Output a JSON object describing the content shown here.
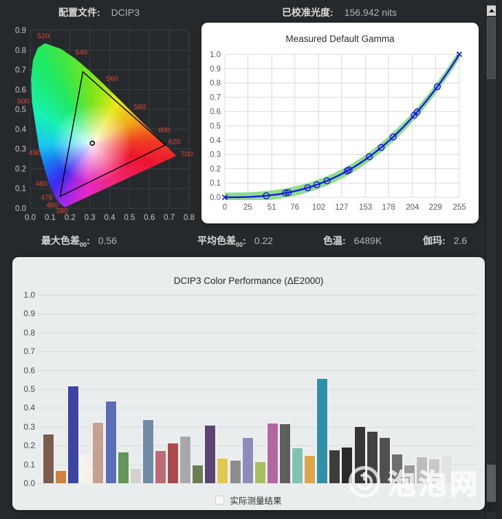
{
  "header": {
    "profile_label": "配置文件:",
    "profile_value": "DCIP3",
    "luminance_label": "已校准光度:",
    "luminance_value": "156.942 nits"
  },
  "stats": [
    {
      "label": "最大色差",
      "sub": "00",
      "value": "0.56"
    },
    {
      "label": "平均色差",
      "sub": "00",
      "value": "0.22"
    },
    {
      "label": "色温",
      "sub": "",
      "value": "6489K"
    },
    {
      "label": "伽玛",
      "sub": "",
      "value": "2.6"
    }
  ],
  "ui": {
    "colon": ":"
  },
  "colors": {
    "page_bg": "#26292c",
    "panel_bg": "#eaedee",
    "grid_dark": "#3b3f42",
    "grid_light": "#d9d9d9",
    "axis_text_dark_bg": "#c6c6c6",
    "axis_text_light_bg": "#595959",
    "wavelength_red": "#e2473c",
    "gamma_curve": "#1a1ae0",
    "gamma_band": "#8fdc8f",
    "triangle": "#000000"
  },
  "watermark": {
    "text": "泡泡网",
    "icon": "power-icon"
  },
  "chart_data": [
    {
      "type": "scatter",
      "title": "CIE 1931 xy chromaticity with DCIP3 gamut triangle",
      "x_ticks": [
        "0.0",
        "0.1",
        "0.2",
        "0.3",
        "0.4",
        "0.5",
        "0.6",
        "0.7",
        "0.8"
      ],
      "y_ticks": [
        "0.9",
        "0.8",
        "0.7",
        "0.6",
        "0.5",
        "0.4",
        "0.3",
        "0.2",
        "0.1",
        "0.0"
      ],
      "xlim": [
        0,
        0.8
      ],
      "ylim": [
        0,
        0.9
      ],
      "gamut_triangle": {
        "red": [
          0.68,
          0.32
        ],
        "green": [
          0.265,
          0.69
        ],
        "blue": [
          0.15,
          0.06
        ]
      },
      "white_point": [
        0.3127,
        0.329
      ],
      "wavelength_labels": [
        {
          "text": "520",
          "x": 0.066,
          "y": 0.872
        },
        {
          "text": "540",
          "x": 0.257,
          "y": 0.788
        },
        {
          "text": "560",
          "x": 0.413,
          "y": 0.656
        },
        {
          "text": "580",
          "x": 0.552,
          "y": 0.514
        },
        {
          "text": "600",
          "x": 0.674,
          "y": 0.396
        },
        {
          "text": "620",
          "x": 0.726,
          "y": 0.337
        },
        {
          "text": "700",
          "x": 0.788,
          "y": 0.274
        },
        {
          "text": "500",
          "x": -0.035,
          "y": 0.542
        },
        {
          "text": "490",
          "x": 0.024,
          "y": 0.281
        },
        {
          "text": "480",
          "x": 0.056,
          "y": 0.125
        },
        {
          "text": "470",
          "x": 0.083,
          "y": 0.056
        },
        {
          "text": "460",
          "x": 0.111,
          "y": 0.017
        },
        {
          "text": "380",
          "x": 0.16,
          "y": -0.012
        }
      ]
    },
    {
      "type": "line",
      "title": "Measured Default Gamma",
      "x_ticks": [
        0,
        25,
        51,
        76,
        102,
        127,
        153,
        178,
        204,
        229,
        255
      ],
      "y_ticks": [
        "1.0",
        "0.9",
        "0.8",
        "0.7",
        "0.6",
        "0.5",
        "0.4",
        "0.3",
        "0.2",
        "0.1",
        "0.0"
      ],
      "xlim": [
        0,
        255
      ],
      "ylim": [
        0,
        1
      ],
      "gamma": 2.6,
      "band_halfwidth": 0.033,
      "marker_x": [
        45,
        66,
        69,
        90,
        100,
        111,
        133,
        135,
        157,
        170,
        183,
        206,
        209,
        231
      ],
      "end_marker_x": [
        0,
        255
      ],
      "legend_position": "none",
      "grid": true
    },
    {
      "type": "bar",
      "title": "DCIP3 Color Performance (ΔE2000)",
      "legend": "实际测量结果",
      "ylim": [
        0,
        1
      ],
      "y_ticks": [
        "1.0",
        "0.9",
        "0.8",
        "0.7",
        "0.6",
        "0.5",
        "0.4",
        "0.3",
        "0.2",
        "0.1",
        "0.0"
      ],
      "grid": true,
      "values": [
        0.26,
        0.065,
        0.515,
        0.15,
        0.32,
        0.435,
        0.163,
        0.078,
        0.335,
        0.17,
        0.213,
        0.248,
        0.095,
        0.305,
        0.13,
        0.122,
        0.242,
        0.112,
        0.317,
        0.313,
        0.185,
        0.145,
        0.555,
        0.177,
        0.19,
        0.3,
        0.275,
        0.24,
        0.155,
        0.095,
        0.137,
        0.127,
        0.148
      ],
      "bar_colors": [
        "#7B5C4F",
        "#D08240",
        "#3D45A0",
        "#F4F2EA",
        "#C5A191",
        "#5B6EB5",
        "#649659",
        "#D3D1CE",
        "#718AA6",
        "#BE6A76",
        "#A94A4C",
        "#A9A9A9",
        "#6D7D51",
        "#5D4573",
        "#E2C752",
        "#8D8D8D",
        "#8F8CBC",
        "#A7BF5D",
        "#B566A0",
        "#5E5E5E",
        "#81C2B1",
        "#DBA64E",
        "#3090AC",
        "#3C3C3C",
        "#2A2A2A",
        "#363636",
        "#424242",
        "#505050",
        "#6E6E6E",
        "#9A9A9A",
        "#BDBDBD",
        "#C9C9C9",
        "#E4E4E4"
      ]
    }
  ]
}
